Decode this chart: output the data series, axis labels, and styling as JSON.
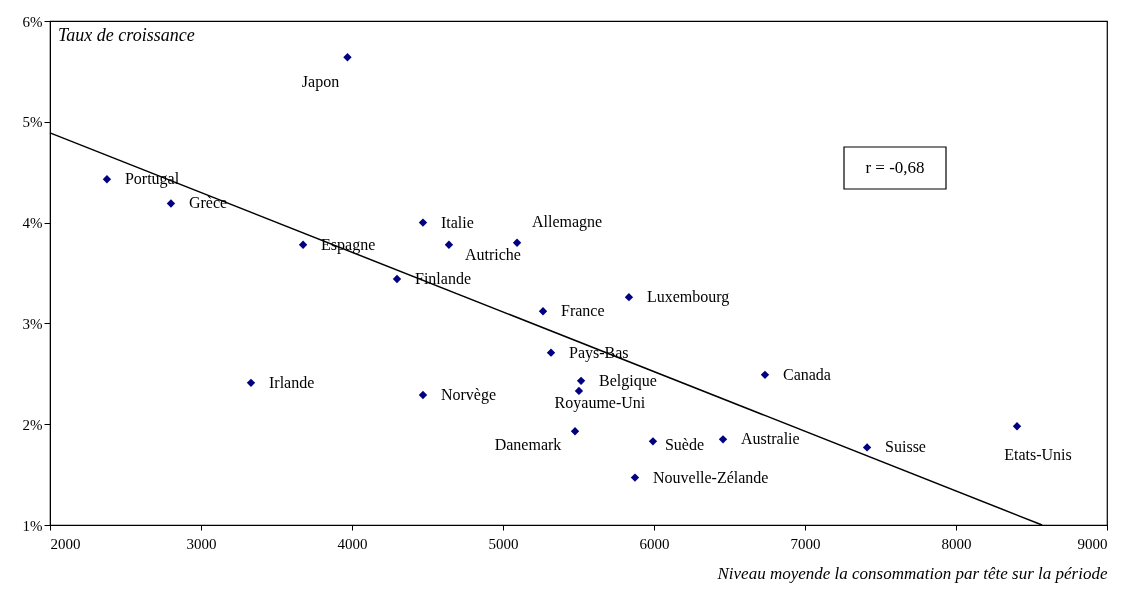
{
  "chart_data": {
    "type": "scatter",
    "ylabel": "Taux de croissance",
    "xlabel": "Niveau moyende la consommation par tête sur la période",
    "xlim": [
      2000,
      9000
    ],
    "xticks": [
      2000,
      3000,
      4000,
      5000,
      6000,
      7000,
      8000,
      9000
    ],
    "ylim": [
      1,
      6
    ],
    "yticks": [
      {
        "value": 1,
        "label": "1%"
      },
      {
        "value": 2,
        "label": "2%"
      },
      {
        "value": 3,
        "label": "3%"
      },
      {
        "value": 4,
        "label": "4%"
      },
      {
        "value": 5,
        "label": "5%"
      },
      {
        "value": 6,
        "label": "6%"
      }
    ],
    "marker": "diamond",
    "series": [
      {
        "color": "#000080",
        "x": [
          3970,
          2377,
          2801,
          3676,
          4470,
          4642,
          5093,
          4298,
          5265,
          5834,
          5318,
          5517,
          5503,
          3331,
          4470,
          6735,
          5477,
          5993,
          6457,
          7411,
          8404,
          5874
        ],
        "values": [
          5.64,
          4.43,
          4.19,
          3.78,
          4.0,
          3.78,
          3.8,
          3.44,
          3.12,
          3.26,
          2.71,
          2.43,
          2.33,
          2.41,
          2.29,
          2.49,
          1.93,
          1.83,
          1.85,
          1.77,
          1.98,
          1.47
        ]
      },
      {
        "type": "line",
        "color": "#000000",
        "marker": "none",
        "x": [
          2000,
          8570
        ],
        "values": [
          4.89,
          1.0
        ]
      }
    ],
    "annotations": [
      {
        "text": "Japon",
        "x": 3970,
        "y": 5.64
      },
      {
        "text": "Portugal",
        "x": 2377,
        "y": 4.43
      },
      {
        "text": "Grèce",
        "x": 2801,
        "y": 4.19
      },
      {
        "text": "Espagne",
        "x": 3676,
        "y": 3.78
      },
      {
        "text": "Italie",
        "x": 4470,
        "y": 4.0
      },
      {
        "text": "Autriche",
        "x": 4642,
        "y": 3.78
      },
      {
        "text": "Allemagne",
        "x": 5093,
        "y": 3.8
      },
      {
        "text": "Finlande",
        "x": 4298,
        "y": 3.44
      },
      {
        "text": "France",
        "x": 5265,
        "y": 3.12
      },
      {
        "text": "Luxembourg",
        "x": 5834,
        "y": 3.26
      },
      {
        "text": "Pays-Bas",
        "x": 5318,
        "y": 2.71
      },
      {
        "text": "Belgique",
        "x": 5517,
        "y": 2.43
      },
      {
        "text": "Royaume-Uni",
        "x": 5503,
        "y": 2.33
      },
      {
        "text": "Irlande",
        "x": 3331,
        "y": 2.41
      },
      {
        "text": "Norvège",
        "x": 4470,
        "y": 2.29
      },
      {
        "text": "Canada",
        "x": 6735,
        "y": 2.49
      },
      {
        "text": "Danemark",
        "x": 5477,
        "y": 1.93
      },
      {
        "text": "Suède",
        "x": 5993,
        "y": 1.83
      },
      {
        "text": "Australie",
        "x": 6457,
        "y": 1.85
      },
      {
        "text": "Suisse",
        "x": 7411,
        "y": 1.77
      },
      {
        "text": "Etats-Unis",
        "x": 8404,
        "y": 1.98
      },
      {
        "text": "Nouvelle-Zélande",
        "x": 5874,
        "y": 1.47
      },
      "r = -0,68"
    ]
  }
}
